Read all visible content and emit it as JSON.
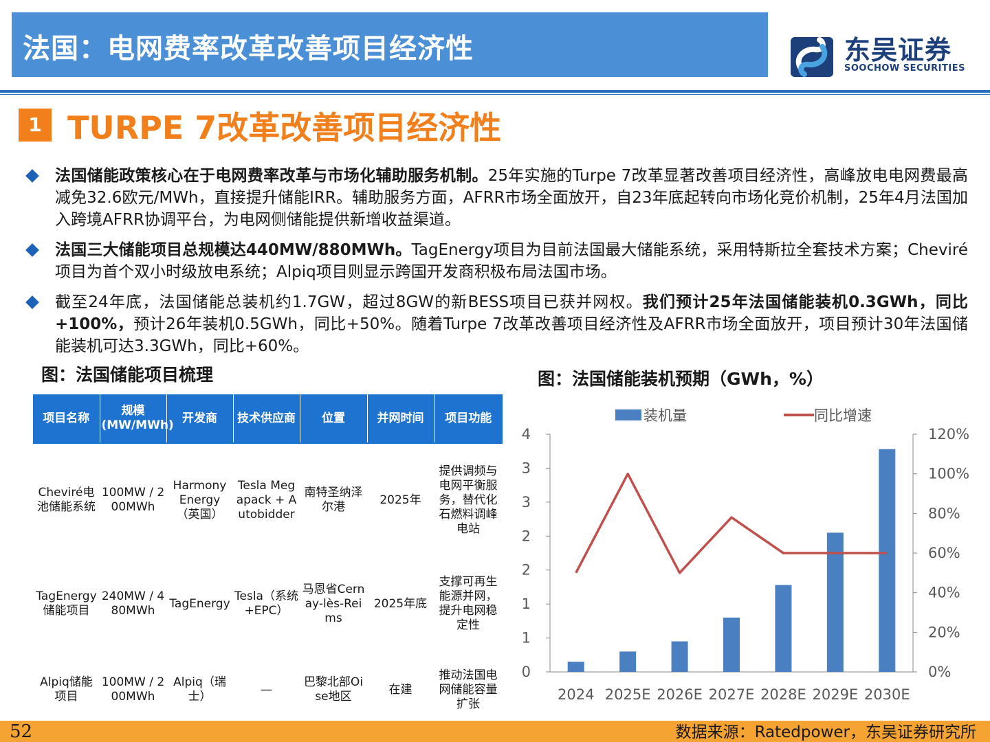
{
  "header": {
    "title": "法国：电网费率改革改善项目经济性",
    "logo_cn": "东吴证券",
    "logo_en": "SOOCHOW SECURITIES"
  },
  "section": {
    "number": "1",
    "title": "TURPE 7改革改善项目经济性"
  },
  "bullets": [
    {
      "bold": "法国储能政策核心在于电网费率改革与市场化辅助服务机制。",
      "text": "25年实施的Turpe  7改革显著改善项目经济性，高峰放电电网费最高减免32.6欧元/MWh，直接提升储能IRR。辅助服务方面，AFRR市场全面放开，自23年底起转向市场化竞价机制，25年4月法国加入跨境AFRR协调平台，为电网侧储能提供新增收益渠道。",
      "bold2": "",
      "text2": ""
    },
    {
      "bold": "法国三大储能项目总规模达440MW/880MWh。",
      "text": "TagEnergy项目为目前法国最大储能系统，采用特斯拉全套技术方案；Cheviré项目为首个双小时级放电系统；Alpiq项目则显示跨国开发商积极布局法国市场。",
      "bold2": "",
      "text2": ""
    },
    {
      "bold": "",
      "text": "截至24年底，法国储能总装机约1.7GW，超过8GW的新BESS项目已获并网权。",
      "bold2": "我们预计25年法国储能装机0.3GWh，同比+100%，",
      "text2": "预计26年装机0.5GWh，同比+50%。随着Turpe  7改革改善项目经济性及AFRR市场全面放开，项目预计30年法国储能装机可达3.3GWh，同比+60%。"
    }
  ],
  "table": {
    "caption": "图：法国储能项目梳理",
    "headers": [
      "项目名称",
      "规模(MW/MWh)",
      "开发商",
      "技术供应商",
      "位置",
      "并网时间",
      "项目功能"
    ],
    "rows": [
      [
        "Cheviré电池储能系统",
        "100MW / 200MWh",
        "Harmony Energy（英国）",
        "Tesla Megapack + Autobidder",
        "南特圣纳泽尔港",
        "2025年",
        "提供调频与电网平衡服务，替代化石燃料调峰电站"
      ],
      [
        "TagEnergy储能项目",
        "240MW / 480MWh",
        "TagEnergy",
        "Tesla（系统+EPC）",
        "马恩省Cernay-lès-Reims",
        "2025年底",
        "支撑可再生能源并网，提升电网稳定性"
      ],
      [
        "Alpiq储能项目",
        "100MW / 200MWh",
        "Alpiq（瑞士）",
        "—",
        "巴黎北部Oise地区",
        "在建",
        "推动法国电网储能容量扩张"
      ]
    ]
  },
  "chart_data": {
    "type": "bar+line",
    "title": "图：法国储能装机预期（GWh，%）",
    "categories": [
      "2024",
      "2025E",
      "2026E",
      "2027E",
      "2028E",
      "2029E",
      "2030E"
    ],
    "series": [
      {
        "name": "装机量",
        "type": "bar",
        "axis": "left",
        "values": [
          0.15,
          0.3,
          0.45,
          0.8,
          1.28,
          2.05,
          3.28
        ],
        "color": "#4a7fc1"
      },
      {
        "name": "同比增速",
        "type": "line",
        "axis": "right",
        "values": [
          50,
          100,
          50,
          78,
          60,
          60,
          60
        ],
        "color": "#c0504d"
      }
    ],
    "left_axis": {
      "ticks": [
        "0",
        "1",
        "1",
        "2",
        "2",
        "3",
        "3",
        "4"
      ],
      "ylim": [
        0,
        3.5
      ]
    },
    "right_axis": {
      "ticks": [
        "0%",
        "20%",
        "40%",
        "60%",
        "80%",
        "100%",
        "120%"
      ],
      "ylim": [
        0,
        120
      ]
    },
    "legend": "top"
  },
  "footer": {
    "page": "52",
    "source": "数据来源：Ratedpower，东吴证券研究所"
  }
}
